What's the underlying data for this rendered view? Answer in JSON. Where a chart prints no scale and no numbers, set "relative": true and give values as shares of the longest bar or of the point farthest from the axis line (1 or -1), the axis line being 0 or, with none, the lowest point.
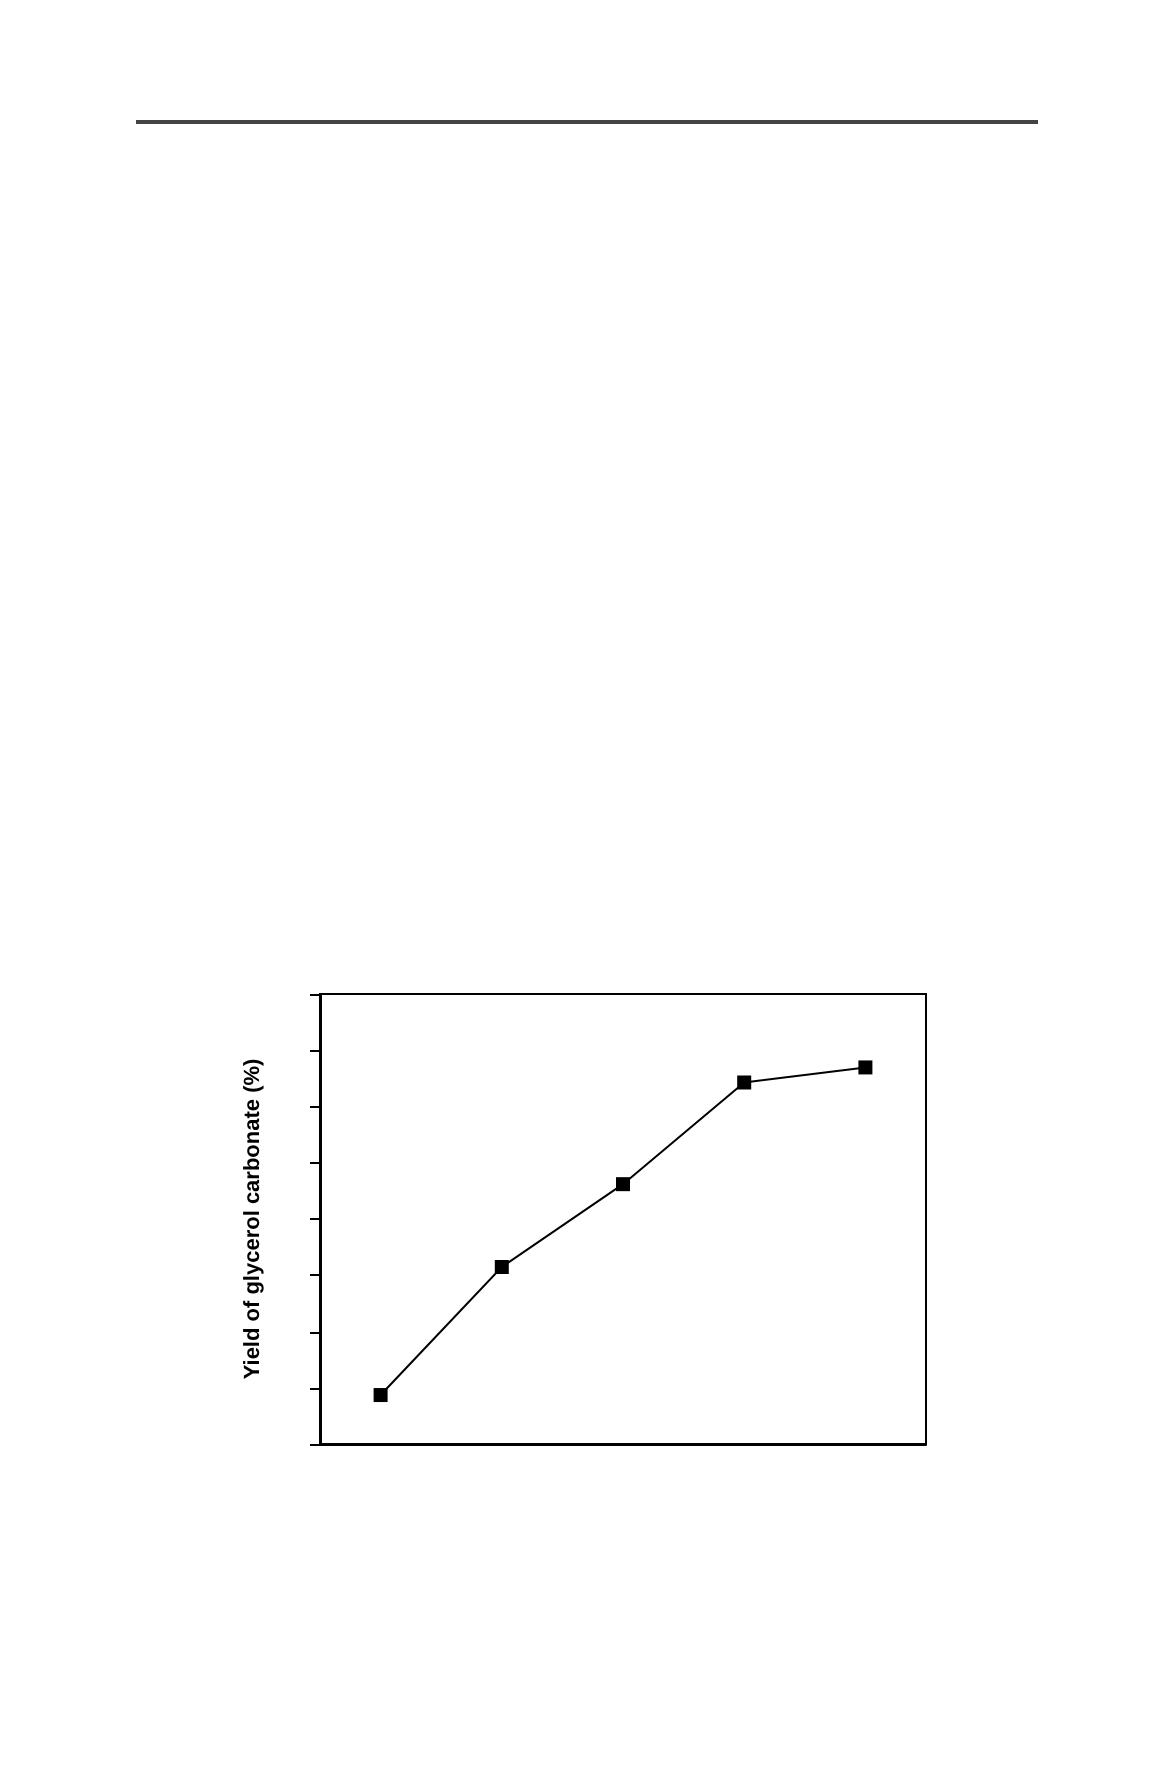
{
  "chart_data": {
    "type": "line",
    "ylabel": "Yield of glycerol carbonate (%)",
    "categories": [
      null,
      null,
      null,
      null,
      null
    ],
    "relative": true,
    "marker": "square",
    "line_style": "solid",
    "grid": false,
    "series": [
      {
        "color": "#000000",
        "values": [
          0.13,
          0.47,
          0.69,
          0.96,
          1
        ]
      }
    ]
  }
}
